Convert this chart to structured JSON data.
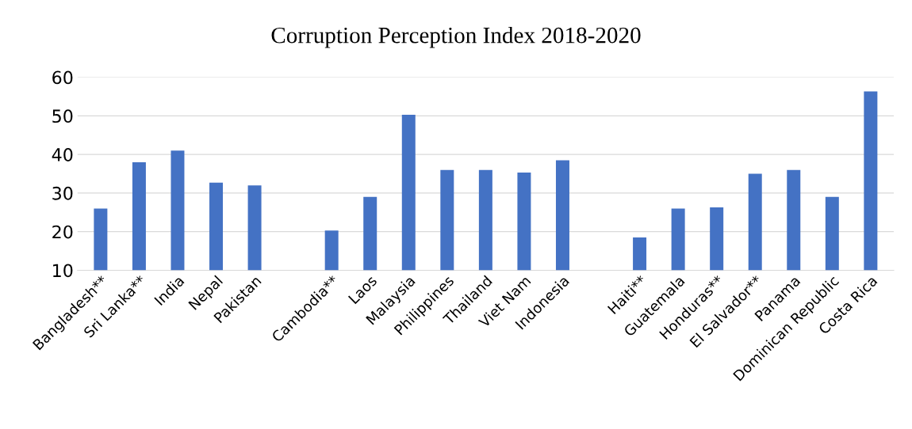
{
  "chart_data": {
    "type": "bar",
    "title": "Corruption Perception Index 2018-2020",
    "categories": [
      "Bangladesh**",
      "Sri Lanka**",
      "India",
      "Nepal",
      "Pakistan",
      null,
      "Cambodia**",
      "Laos",
      "Malaysia",
      "Philippines",
      "Thailand",
      "Viet Nam",
      "Indonesia",
      null,
      "Haiti**",
      "Guatemala",
      "Honduras**",
      "El Salvador**",
      "Panama",
      "Dominican Republic",
      "Costa Rica"
    ],
    "values": [
      26,
      38,
      41,
      32.7,
      32,
      null,
      20.3,
      29,
      50.3,
      36,
      36,
      35.3,
      38.5,
      null,
      18.5,
      26,
      26.3,
      35,
      36,
      29,
      56.3
    ],
    "color": "#4472c4",
    "ylim": [
      10,
      60
    ],
    "yticks": [
      10,
      20,
      30,
      40,
      50,
      60
    ],
    "grid": "y",
    "legend": false
  }
}
